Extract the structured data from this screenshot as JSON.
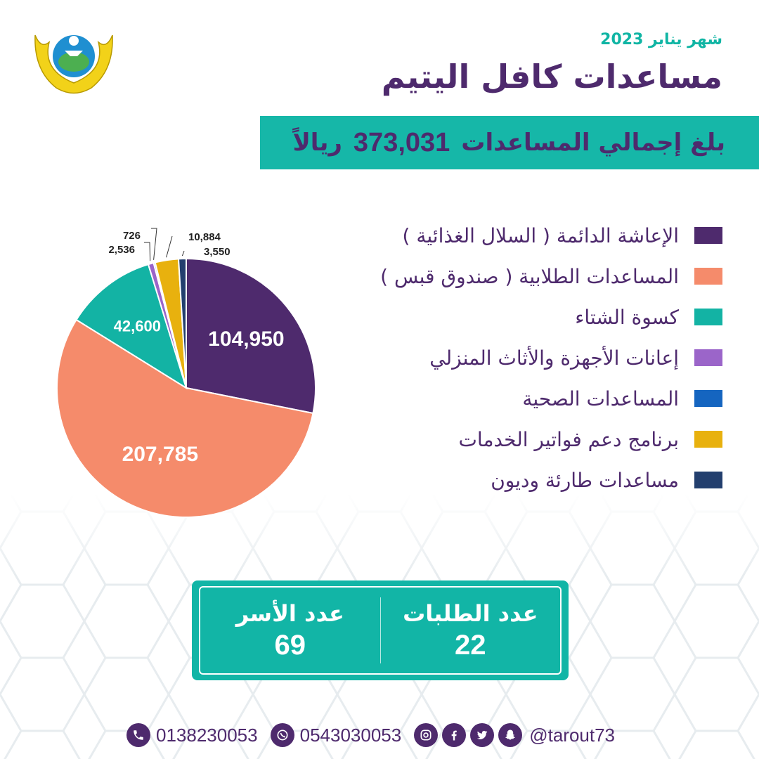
{
  "header": {
    "month": "شهر يناير 2023",
    "title": "مساعدات كافل اليتيم"
  },
  "total": {
    "prefix": "بلغ إجمالي المساعدات",
    "amount": "373,031",
    "currency": "ريالاً"
  },
  "chart_data": {
    "type": "pie",
    "categories": [
      "الإعاشة الدائمة ( السلال الغذائية )",
      "المساعدات الطلابية ( صندوق قبس )",
      "كسوة الشتاء",
      "إعانات الأجهزة والأثاث المنزلي",
      "المساعدات الصحية",
      "برنامج دعم فواتير الخدمات",
      "مساعدات طارئة وديون"
    ],
    "values": [
      104950,
      207785,
      42600,
      2536,
      726,
      10884,
      3550
    ],
    "value_labels": [
      "104,950",
      "207,785",
      "42,600",
      "2,536",
      "726",
      "10,884",
      "3,550"
    ],
    "colors": [
      "#4e2a6d",
      "#f58b6b",
      "#13b3a4",
      "#9b65c9",
      "#1565c0",
      "#e8b10e",
      "#233f6e"
    ],
    "legend_placement": "right"
  },
  "stats": {
    "requests_label": "عدد الطلبات",
    "requests_value": "22",
    "families_label": "عدد الأسر",
    "families_value": "69"
  },
  "footer": {
    "phone": "0138230053",
    "whatsapp": "0543030053",
    "handle": "@tarout73"
  },
  "icons": [
    "logo-emblem",
    "phone-icon",
    "whatsapp-icon",
    "instagram-icon",
    "facebook-icon",
    "twitter-icon",
    "snapchat-icon"
  ]
}
